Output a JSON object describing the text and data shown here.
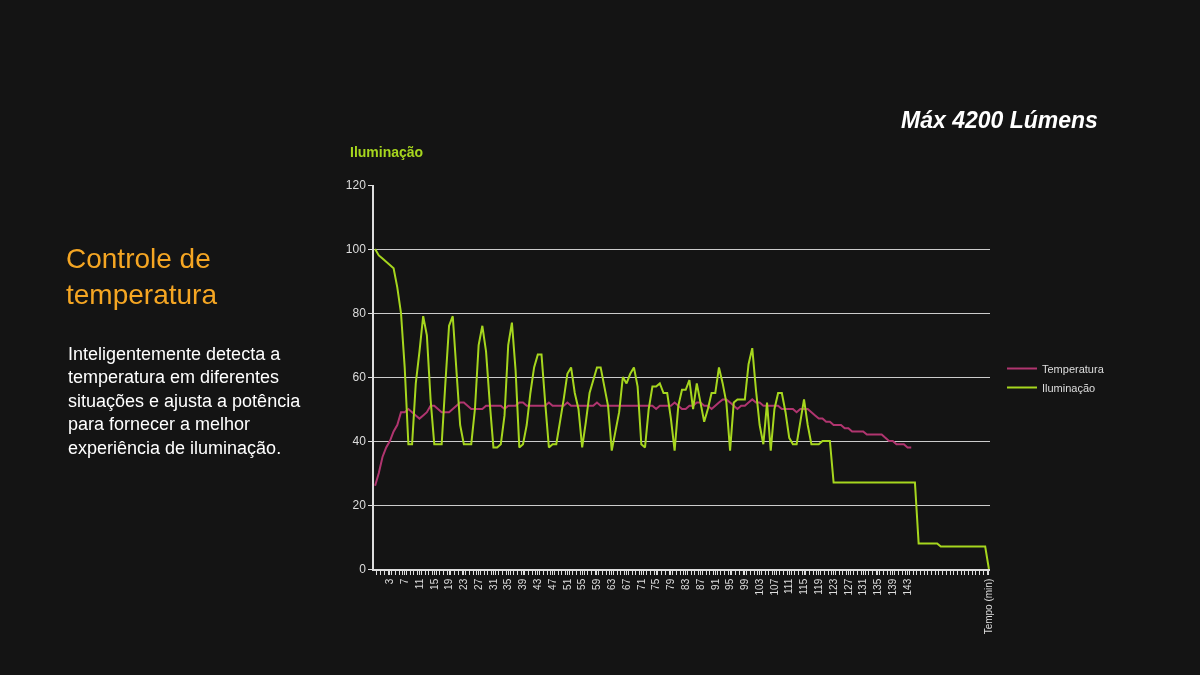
{
  "chart_data": {
    "type": "line",
    "title": "Controle de temperatura",
    "subtitle": "Máx 4200 Lúmens",
    "ylabel": "Iluminação",
    "annotations": [
      "Inteligentemente detecta a temperatura em diferentes situações e ajusta a potência para fornecer a melhor experiência de iluminação."
    ],
    "categories": [
      null,
      null,
      null,
      null,
      "3",
      null,
      null,
      null,
      "7",
      null,
      null,
      null,
      "11",
      null,
      null,
      null,
      "15",
      null,
      null,
      null,
      "19",
      null,
      null,
      null,
      "23",
      null,
      null,
      null,
      "27",
      null,
      null,
      null,
      "31",
      null,
      null,
      null,
      "35",
      null,
      null,
      null,
      "39",
      null,
      null,
      null,
      "43",
      null,
      null,
      null,
      "47",
      null,
      null,
      null,
      "51",
      null,
      null,
      null,
      "55",
      null,
      null,
      null,
      "59",
      null,
      null,
      null,
      "63",
      null,
      null,
      null,
      "67",
      null,
      null,
      null,
      "71",
      null,
      null,
      null,
      "75",
      null,
      null,
      null,
      "79",
      null,
      null,
      null,
      "83",
      null,
      null,
      null,
      "87",
      null,
      null,
      null,
      "91",
      null,
      null,
      null,
      "95",
      null,
      null,
      null,
      "99",
      null,
      null,
      null,
      "103",
      null,
      null,
      null,
      "107",
      null,
      null,
      null,
      "111",
      null,
      null,
      null,
      "115",
      null,
      null,
      null,
      "119",
      null,
      null,
      null,
      "123",
      null,
      null,
      null,
      "127",
      null,
      null,
      null,
      "131",
      null,
      null,
      null,
      "135",
      null,
      null,
      null,
      "139",
      null,
      null,
      null,
      "143",
      null,
      null,
      null,
      null,
      null,
      null,
      null,
      null,
      null,
      null,
      null,
      null,
      null,
      null,
      null,
      null,
      null,
      null,
      null,
      null,
      null,
      "Tempo (min)"
    ],
    "series": [
      {
        "name": "Temperatura",
        "color": "#b0356f",
        "values": [
          26,
          30,
          35,
          38,
          40,
          43,
          45,
          49,
          49,
          50,
          49,
          48,
          47,
          48,
          49,
          51,
          51,
          50,
          49,
          49,
          49,
          50,
          51,
          52,
          52,
          51,
          50,
          50,
          50,
          50,
          51,
          51,
          51,
          51,
          51,
          50,
          51,
          51,
          51,
          52,
          52,
          51,
          51,
          51,
          51,
          51,
          51,
          52,
          51,
          51,
          51,
          51,
          52,
          51,
          51,
          51,
          51,
          51,
          51,
          51,
          52,
          51,
          51,
          51,
          51,
          51,
          51,
          51,
          51,
          51,
          51,
          51,
          51,
          51,
          51,
          51,
          50,
          51,
          51,
          51,
          51,
          52,
          51,
          50,
          50,
          51,
          51,
          52,
          52,
          51,
          51,
          50,
          51,
          52,
          53,
          53,
          52,
          51,
          50,
          51,
          51,
          52,
          53,
          52,
          52,
          51,
          51,
          51,
          51,
          51,
          50,
          50,
          50,
          50,
          49,
          50,
          50,
          50,
          49,
          48,
          47,
          47,
          46,
          46,
          45,
          45,
          45,
          44,
          44,
          43,
          43,
          43,
          43,
          42,
          42,
          42,
          42,
          42,
          41,
          40,
          40,
          39,
          39,
          39,
          38,
          38,
          null,
          null,
          null,
          null,
          null,
          null,
          null,
          null,
          null,
          null,
          null,
          null,
          null,
          null,
          null,
          null,
          null,
          null,
          null,
          null,
          null
        ]
      },
      {
        "name": "Iluminação",
        "color": "#a6d61e",
        "values": [
          100,
          98,
          97,
          96,
          95,
          94,
          88,
          80,
          63,
          39,
          39,
          58,
          68,
          79,
          73,
          53,
          39,
          39,
          39,
          58,
          76,
          79,
          62,
          45,
          39,
          39,
          39,
          50,
          70,
          76,
          68,
          52,
          38,
          38,
          39,
          48,
          70,
          77,
          62,
          38,
          39,
          45,
          55,
          63,
          67,
          67,
          52,
          38,
          39,
          39,
          46,
          53,
          61,
          63,
          55,
          50,
          38,
          46,
          55,
          59,
          63,
          63,
          57,
          51,
          37,
          43,
          49,
          60,
          58,
          61,
          63,
          57,
          39,
          38,
          50,
          57,
          57,
          58,
          55,
          55,
          47,
          37,
          51,
          56,
          56,
          59,
          50,
          58,
          52,
          46,
          50,
          55,
          55,
          63,
          58,
          52,
          37,
          52,
          53,
          53,
          53,
          64,
          69,
          56,
          45,
          39,
          52,
          37,
          50,
          55,
          55,
          49,
          41,
          39,
          39,
          46,
          53,
          45,
          39,
          39,
          39,
          40,
          40,
          40,
          27,
          27,
          27,
          27,
          27,
          27,
          27,
          27,
          27,
          27,
          27,
          27,
          27,
          27,
          27,
          27,
          27,
          27,
          27,
          27,
          27,
          27,
          27,
          8,
          8,
          8,
          8,
          8,
          8,
          7,
          7,
          7,
          7,
          7,
          7,
          7,
          7,
          7,
          7,
          7,
          7,
          7,
          0
        ]
      }
    ],
    "ylim": [
      0,
      120
    ],
    "yticks": [
      0,
      20,
      40,
      60,
      80,
      100,
      120
    ],
    "grid": "y",
    "legend": "right"
  }
}
